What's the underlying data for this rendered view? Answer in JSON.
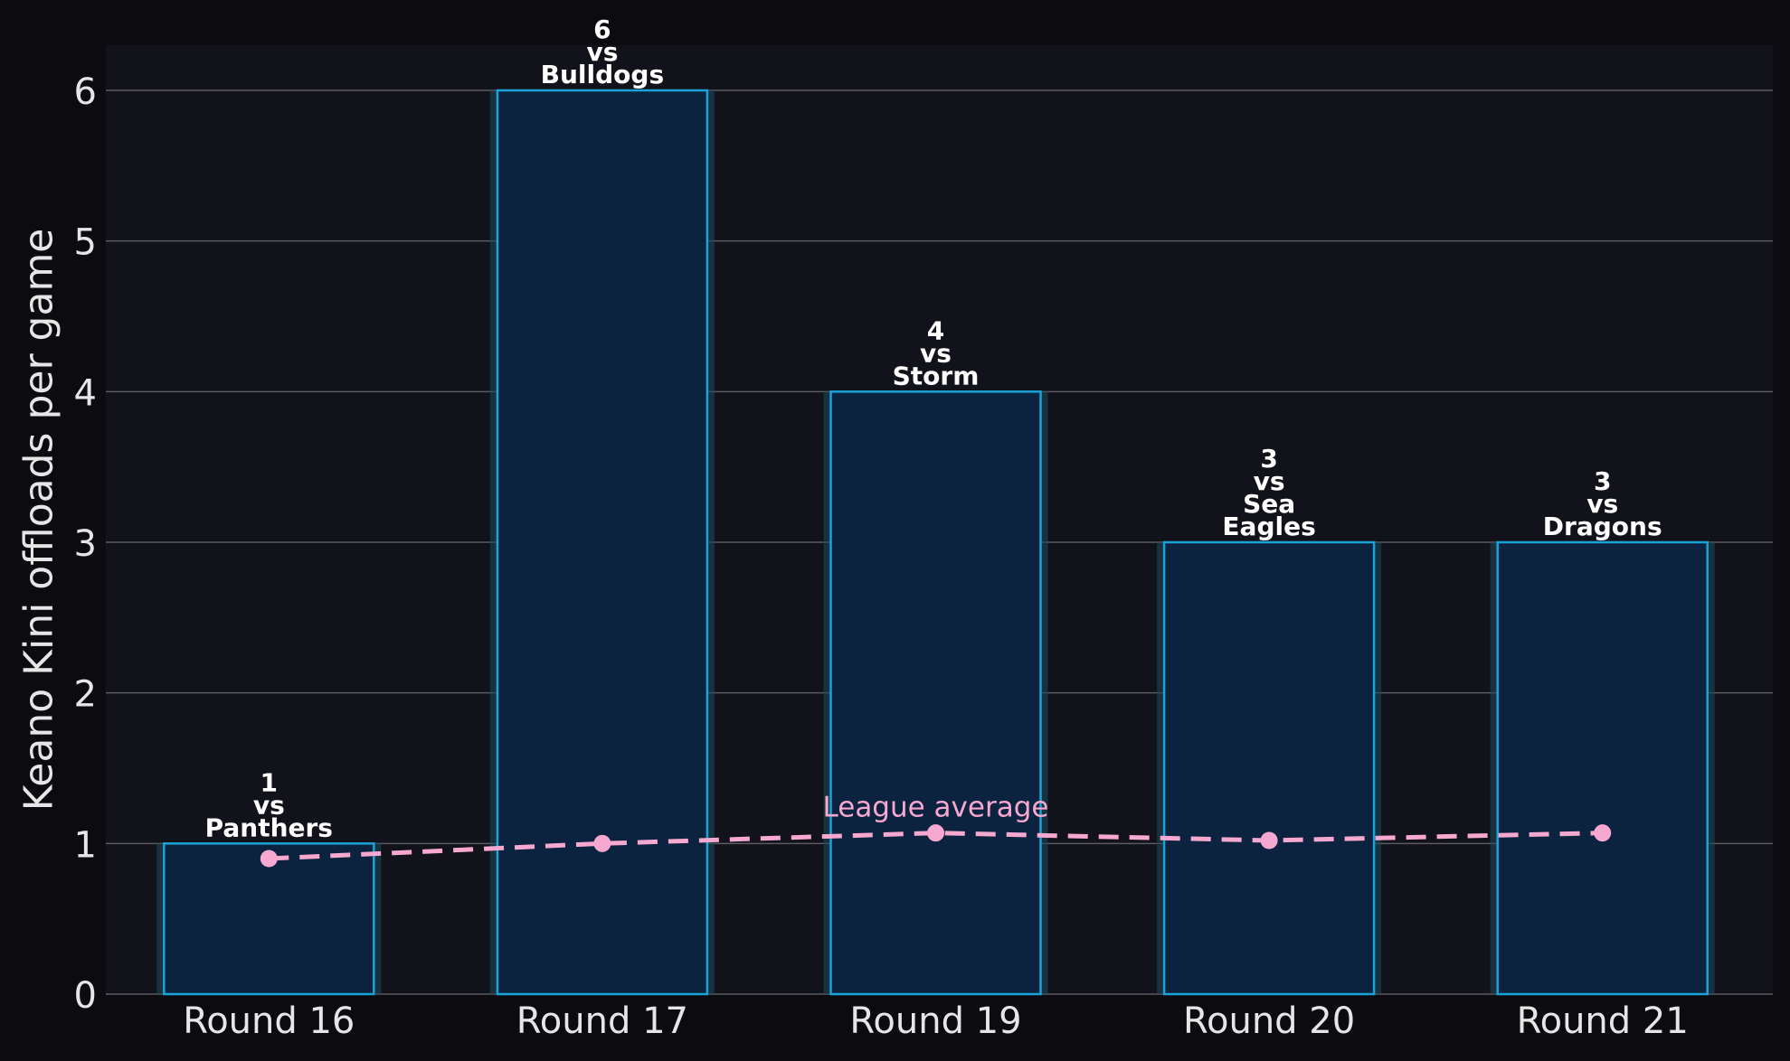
{
  "chart_data": {
    "type": "bar",
    "ylabel": "Keano Kini offloads per game",
    "xlabel": "",
    "categories": [
      "Round 16",
      "Round 17",
      "Round 19",
      "Round 20",
      "Round 21"
    ],
    "series": [
      {
        "values": [
          1,
          6,
          4,
          3,
          3
        ],
        "bar_labels": [
          [
            "1",
            "vs",
            "Panthers"
          ],
          [
            "6",
            "vs",
            "Bulldogs"
          ],
          [
            "4",
            "vs",
            "Storm"
          ],
          [
            "3",
            "vs",
            "Sea",
            "Eagles"
          ],
          [
            "3",
            "vs",
            "Dragons"
          ]
        ]
      },
      {
        "name": "League average",
        "type": "line",
        "style": "dashed",
        "values": [
          0.9,
          1.0,
          1.07,
          1.02,
          1.07
        ]
      }
    ],
    "ylim": [
      0,
      6.3
    ],
    "yticks": [
      0,
      1,
      2,
      3,
      4,
      5,
      6
    ],
    "grid": "horizontal",
    "colors": {
      "background": "#0b0b10",
      "plot_background": "#12131a",
      "bar_fill": "#0c2340",
      "bar_edge": "#1aa3d9",
      "bar_glow": "#1b4a5c",
      "line": "#f6a8d0",
      "grid": "#5a5a60",
      "text": "#e6e6e6"
    }
  }
}
